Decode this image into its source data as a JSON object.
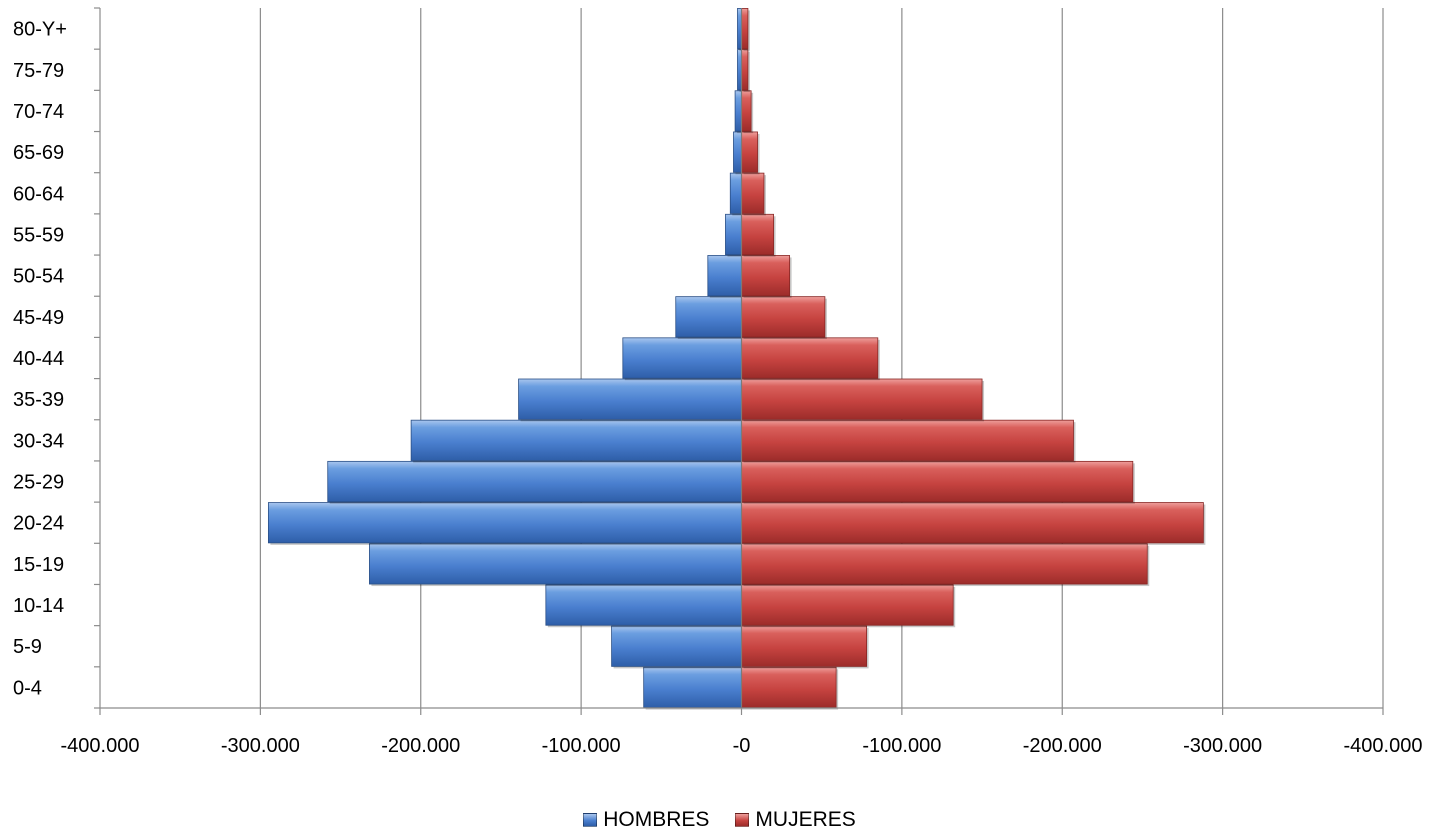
{
  "chart_data": {
    "type": "bar",
    "orientation": "horizontal",
    "layout": "population-pyramid",
    "categories": [
      "0-4",
      "5-9",
      "10-14",
      "15-19",
      "20-24",
      "25-29",
      "30-34",
      "35-39",
      "40-44",
      "45-49",
      "50-54",
      "55-59",
      "60-64",
      "65-69",
      "70-74",
      "75-79",
      "80-Y+"
    ],
    "series": [
      {
        "name": "HOMBRES",
        "color": "#4f81bd",
        "side": "left",
        "values": [
          -61000,
          -81000,
          -122000,
          -232000,
          -295000,
          -258000,
          -206000,
          -139000,
          -74000,
          -41000,
          -21000,
          -10000,
          -7000,
          -5000,
          -4000,
          -2500,
          -2500
        ]
      },
      {
        "name": "MUJERES",
        "color": "#c0504d",
        "side": "right",
        "values": [
          59000,
          78000,
          132000,
          253000,
          288000,
          244000,
          207000,
          150000,
          85000,
          52000,
          30000,
          20000,
          14000,
          10000,
          6000,
          4000,
          4000
        ]
      }
    ],
    "x_ticks": [
      "-400.000",
      "-300.000",
      "-200.000",
      "-100.000",
      "-0",
      "-100.000",
      "-200.000",
      "-300.000",
      "-400.000"
    ],
    "xlim": [
      -400000,
      400000
    ],
    "grid": "vertical major gridlines",
    "legend_position": "bottom",
    "title": "",
    "xlabel": "",
    "ylabel": ""
  }
}
